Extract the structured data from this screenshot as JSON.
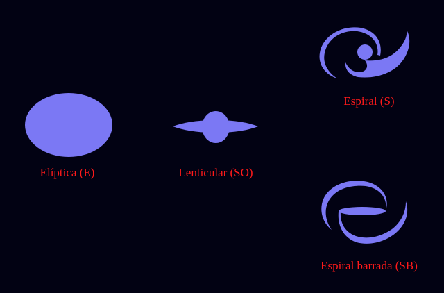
{
  "colors": {
    "background": "#020213",
    "galaxy_fill": "#7b78f4",
    "label_text": "#ff1a1a"
  },
  "galaxies": [
    {
      "label": "Elíptica (E)"
    },
    {
      "label": "Lenticular (SO)"
    },
    {
      "label": "Espiral (S)"
    },
    {
      "label": "Espiral barrada (SB)"
    }
  ]
}
